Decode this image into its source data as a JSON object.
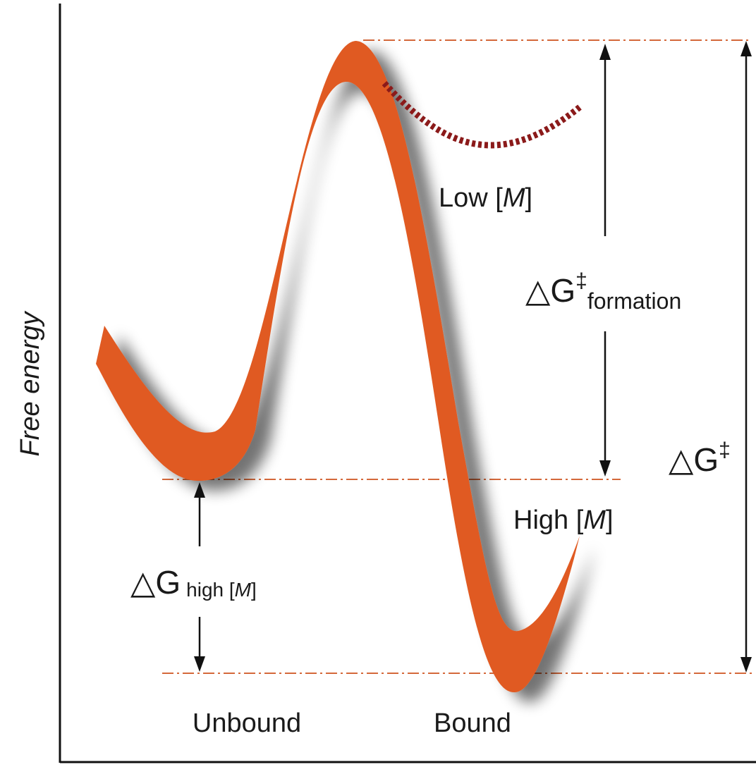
{
  "axis": {
    "y_label": "Free energy"
  },
  "labels": {
    "low_m": [
      "Low [",
      "M",
      "]"
    ],
    "high_m": [
      "High [",
      "M",
      "]"
    ],
    "delta_g_formation": {
      "symbol": "△G",
      "sup": "‡",
      "sub": "formation"
    },
    "delta_g_total": {
      "symbol": "△G",
      "sup": "‡"
    },
    "delta_g_high": {
      "symbol": "△G",
      "sub": [
        "high [",
        "M",
        "]"
      ]
    }
  },
  "states": [
    "Unbound",
    "Bound"
  ]
}
